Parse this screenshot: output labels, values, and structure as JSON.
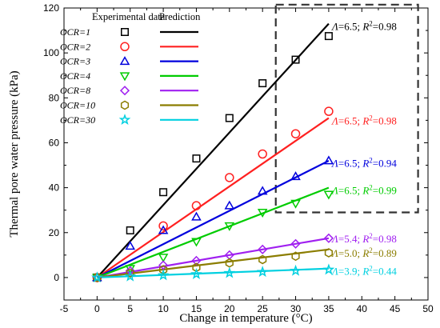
{
  "chart_data": {
    "type": "scatter",
    "xlabel": "Change in temperature (°C)",
    "ylabel": "Thermal pore water pressure  (kPa)",
    "xlim": [
      -5,
      50
    ],
    "ylim": [
      -10,
      120
    ],
    "xticks": [
      "-5",
      "0",
      "5",
      "10",
      "15",
      "20",
      "25",
      "30",
      "35",
      "40",
      "45",
      "50"
    ],
    "yticks": [
      "0",
      "20",
      "40",
      "60",
      "80",
      "100",
      "120"
    ],
    "legend": {
      "header_data": "Experimental data",
      "header_pred": "Prediction",
      "placement": "top-left"
    },
    "series": [
      {
        "name": "OCR=1",
        "marker": "square",
        "color": "#000000",
        "x": [
          0,
          5,
          10,
          15,
          20,
          25,
          30,
          35
        ],
        "y": [
          0,
          21,
          38,
          53,
          71,
          86.5,
          97,
          107.5
        ],
        "prediction": [
          [
            0,
            0
          ],
          [
            35,
            113
          ]
        ]
      },
      {
        "name": "OCR=2",
        "marker": "circle",
        "color": "#ff2020",
        "x": [
          0,
          10,
          15,
          20,
          25,
          30,
          35
        ],
        "y": [
          0,
          23,
          32,
          44.5,
          55,
          64,
          74
        ],
        "prediction": [
          [
            0,
            0
          ],
          [
            35,
            71
          ]
        ]
      },
      {
        "name": "OCR=3",
        "marker": "triangle-up",
        "color": "#0000dd",
        "x": [
          0,
          5,
          10,
          15,
          20,
          25,
          30,
          35
        ],
        "y": [
          0,
          14,
          21,
          27,
          32,
          38.5,
          45,
          52
        ],
        "prediction": [
          [
            0,
            0
          ],
          [
            35,
            52
          ]
        ]
      },
      {
        "name": "OCR=4",
        "marker": "triangle-down",
        "color": "#00cc00",
        "x": [
          0,
          5,
          10,
          15,
          20,
          25,
          30,
          35
        ],
        "y": [
          0,
          4,
          9,
          16,
          23,
          29,
          33,
          37
        ],
        "prediction": [
          [
            0,
            0
          ],
          [
            35,
            40
          ]
        ]
      },
      {
        "name": "OCR=8",
        "marker": "diamond",
        "color": "#a020f0",
        "x": [
          0,
          5,
          10,
          15,
          20,
          25,
          30,
          35
        ],
        "y": [
          0,
          3,
          5.5,
          7.5,
          10,
          12.5,
          15,
          17.5
        ],
        "prediction": [
          [
            0,
            0
          ],
          [
            35,
            17.5
          ]
        ]
      },
      {
        "name": "OCR=10",
        "marker": "hexagon",
        "color": "#8b7d00",
        "x": [
          0,
          5,
          10,
          15,
          20,
          25,
          30,
          35
        ],
        "y": [
          0,
          2,
          3.5,
          4.5,
          6.5,
          8,
          9.5,
          11
        ],
        "prediction": [
          [
            0,
            0
          ],
          [
            35,
            12.5
          ]
        ]
      },
      {
        "name": "OCR=30",
        "marker": "star",
        "color": "#00d0e0",
        "x": [
          0,
          5,
          10,
          15,
          20,
          25,
          30,
          35
        ],
        "y": [
          0,
          0.5,
          1,
          1.5,
          2,
          2.5,
          3,
          3.5
        ],
        "prediction": [
          [
            0,
            0
          ],
          [
            35,
            4
          ]
        ]
      }
    ],
    "annotations": [
      {
        "text_lambda": "Λ",
        "text_mid": "=6.5; ",
        "text_r": "R",
        "text_sup": "2",
        "text_end": "=0.98",
        "color": "#000000",
        "x": 35.5,
        "y": 112
      },
      {
        "text_lambda": "Λ",
        "text_mid": "=6.5; ",
        "text_r": "R",
        "text_sup": "2",
        "text_end": "=0.98",
        "color": "#ff2020",
        "x": 35.5,
        "y": 70
      },
      {
        "text_lambda": "Λ",
        "text_mid": "=6.5; ",
        "text_r": "R",
        "text_sup": "2",
        "text_end": "=0.94",
        "color": "#0000dd",
        "x": 35.5,
        "y": 51
      },
      {
        "text_lambda": "Λ",
        "text_mid": "=6.5; ",
        "text_r": "R",
        "text_sup": "2",
        "text_end": "=0.99",
        "color": "#00cc00",
        "x": 35.5,
        "y": 39
      },
      {
        "text_lambda": "Λ",
        "text_mid": "=5.4; ",
        "text_r": "R",
        "text_sup": "2",
        "text_end": "=0.98",
        "color": "#a020f0",
        "x": 35.5,
        "y": 17.5
      },
      {
        "text_lambda": "Λ",
        "text_mid": "=5.0; ",
        "text_r": "R",
        "text_sup": "2",
        "text_end": "=0.89",
        "color": "#8b7d00",
        "x": 35.5,
        "y": 11
      },
      {
        "text_lambda": "Λ",
        "text_mid": "=3.9; ",
        "text_r": "R",
        "text_sup": "2",
        "text_end": "=0.44",
        "color": "#00d0e0",
        "x": 35.5,
        "y": 3
      }
    ],
    "highlight_box": {
      "x": [
        27,
        48.5
      ],
      "y": [
        29,
        121.5
      ],
      "style": "dashed"
    },
    "grid": false
  }
}
